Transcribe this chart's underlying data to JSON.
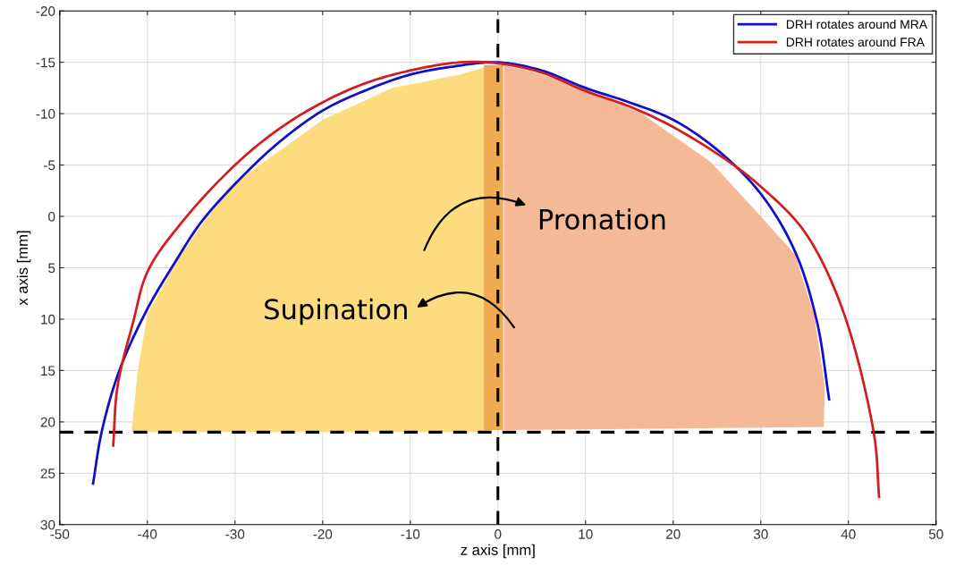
{
  "chart_data": {
    "type": "line",
    "xlabel": "z axis [mm]",
    "ylabel": "x axis [mm]",
    "xlim": [
      -50,
      50
    ],
    "xticks": [
      -50,
      -40,
      -30,
      -20,
      -10,
      0,
      10,
      20,
      30,
      40,
      50
    ],
    "ylim": [
      30,
      -20
    ],
    "yticks": [
      -20,
      -15,
      -10,
      -5,
      0,
      5,
      10,
      15,
      20,
      25,
      30
    ],
    "grid": true,
    "legend": "top right",
    "series": [
      {
        "name": "DRH rotates around MRA",
        "color": "#1010c8",
        "x": [
          -46.2,
          -45.2,
          -43.2,
          -40,
          -36.8,
          -33.9,
          -29.6,
          -25,
          -20,
          -15,
          -10,
          -5,
          0,
          5,
          10,
          15,
          20,
          25,
          30,
          33.9,
          36.4,
          37.8
        ],
        "values": [
          26.0,
          20.9,
          15.0,
          9.0,
          4.4,
          0.6,
          -3.5,
          -7.2,
          -10.3,
          -12.3,
          -13.8,
          -14.6,
          -15,
          -14.2,
          -12.5,
          -11.1,
          -9.4,
          -6.5,
          -2.2,
          3.4,
          10.2,
          17.8
        ]
      },
      {
        "name": "DRH rotates around FRA",
        "color": "#d21e1e",
        "x": [
          -43.9,
          -43.4,
          -41.6,
          -40,
          -36.1,
          -30,
          -25,
          -20,
          -15,
          -10,
          -4.3,
          0,
          5,
          10,
          15,
          20,
          26.4,
          30,
          35,
          39.3,
          42.9,
          43.5
        ],
        "values": [
          22.3,
          16.5,
          10.2,
          5.4,
          0.6,
          -5.0,
          -8.5,
          -11.1,
          -13.0,
          -14.2,
          -15,
          -14.9,
          -14.0,
          -12.2,
          -10.7,
          -8.7,
          -5.3,
          -2.9,
          1.5,
          9.0,
          21.1,
          27.3
        ]
      }
    ],
    "ref_lines": [
      {
        "axis": "y",
        "value": 21,
        "color": "#000000",
        "line_style": "dashed"
      },
      {
        "axis": "x",
        "value": 0,
        "color": "#000000",
        "line_style": "dashed"
      }
    ],
    "annotations": [
      "Pronation",
      "Supination"
    ]
  }
}
